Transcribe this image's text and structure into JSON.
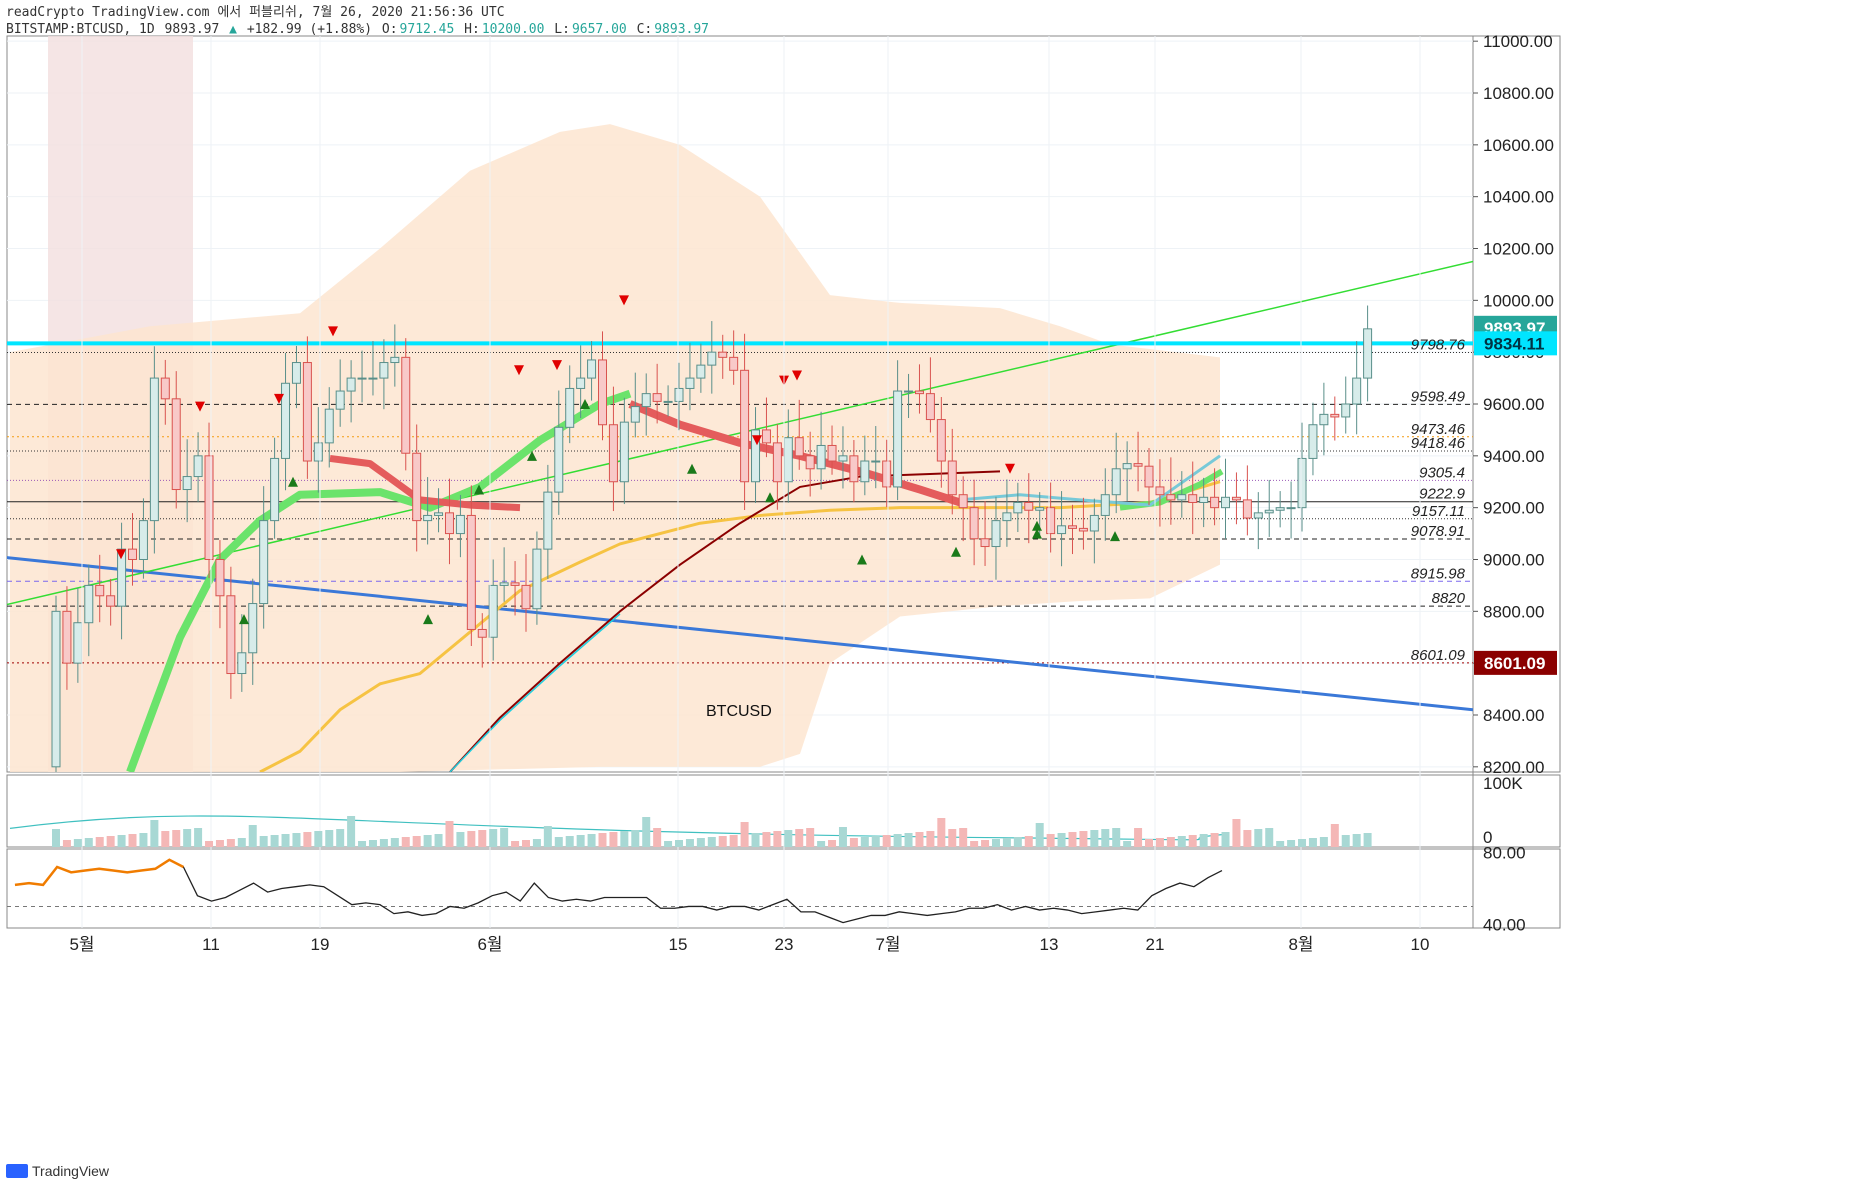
{
  "header": {
    "line1": "readCrypto TradingView.com 에서 퍼블리쉬, 7월 26, 2020 21:56:36 UTC",
    "symbol": "BITSTAMP:BTCUSD, 1D",
    "last": "9893.97",
    "change": "+182.99 (+1.88%)",
    "open_label": "O:",
    "open": "9712.45",
    "high_label": "H:",
    "high": "10200.00",
    "low_label": "L:",
    "low": "9657.00",
    "close_label": "C:",
    "close": "9893.97"
  },
  "footer": {
    "brand": "TradingView"
  },
  "colors": {
    "up": "#26a69a",
    "down": "#ef5350",
    "cyan_line": "#00e5ff",
    "green_line": "#33dd33",
    "blue_line": "#3a78d8",
    "orange_ma": "#f6c343",
    "price_tag_dark": "#8b0000"
  },
  "chart_data": [
    {
      "type": "line",
      "title": "BTCUSD",
      "subtitle": "BITSTAMP:BTCUSD, 1D",
      "x_ticks": [
        "5월",
        "11",
        "19",
        "6월",
        "15",
        "23",
        "7월",
        "13",
        "21",
        "8월",
        "10"
      ],
      "y_ticks": [
        "8200.00",
        "8400.00",
        "8600.00",
        "8800.00",
        "9000.00",
        "9200.00",
        "9400.00",
        "9600.00",
        "9800.00",
        "10000.00",
        "10200.00",
        "10400.00",
        "10600.00",
        "10800.00",
        "11000.00"
      ],
      "ylim": [
        8180,
        11020
      ],
      "candles_close": [
        8800,
        8600,
        8756,
        8900,
        8860,
        8820,
        9040,
        9000,
        9150,
        9700,
        9620,
        9270,
        9320,
        9400,
        9000,
        8860,
        8560,
        8640,
        8830,
        9150,
        9390,
        9680,
        9760,
        9380,
        9450,
        9580,
        9650,
        9700,
        9700,
        9700,
        9760,
        9780,
        9410,
        9150,
        9170,
        9180,
        9100,
        9170,
        8730,
        8700,
        8900,
        8910,
        8900,
        8810,
        9040,
        9260,
        9510,
        9660,
        9700,
        9770,
        9520,
        9300,
        9530,
        9590,
        9640,
        9610,
        9610,
        9660,
        9700,
        9750,
        9800,
        9780,
        9730,
        9300,
        9500,
        9450,
        9300,
        9470,
        9400,
        9350,
        9440,
        9380,
        9400,
        9300,
        9380,
        9380,
        9280,
        9650,
        9650,
        9640,
        9540,
        9380,
        9250,
        9200,
        9080,
        9050,
        9150,
        9180,
        9220,
        9190,
        9200,
        9100,
        9130,
        9120,
        9110,
        9170,
        9250,
        9350,
        9370,
        9360,
        9280,
        9250,
        9230,
        9250,
        9220,
        9240,
        9200,
        9240,
        9230,
        9160,
        9180,
        9190,
        9200,
        9200,
        9390,
        9520,
        9560,
        9550,
        9600,
        9700,
        9890
      ],
      "horizontal_levels": [
        {
          "value": 9798.76,
          "label": "9798.76",
          "style": "dotted"
        },
        {
          "value": 9598.49,
          "label": "9598.49",
          "style": "dashed"
        },
        {
          "value": 9473.46,
          "label": "9473.46",
          "style": "dotted-orange"
        },
        {
          "value": 9418.46,
          "label": "9418.46",
          "style": "dotted"
        },
        {
          "value": 9305.4,
          "label": "9305.4",
          "style": "dotted-purple"
        },
        {
          "value": 9222.9,
          "label": "9222.9",
          "style": "solid"
        },
        {
          "value": 9157.11,
          "label": "9157.11",
          "style": "dotted"
        },
        {
          "value": 9078.91,
          "label": "9078.91",
          "style": "dashed"
        },
        {
          "value": 8915.98,
          "label": "8915.98",
          "style": "dashed-purple"
        },
        {
          "value": 8820,
          "label": "8820",
          "style": "dashed"
        },
        {
          "value": 8601.09,
          "label": "8601.09",
          "style": "dotted-red"
        }
      ],
      "price_tags": [
        {
          "value": 9893.97,
          "label": "9893.97",
          "color": "#26a69a"
        },
        {
          "value": 9834.11,
          "label": "9834.11",
          "color": "#00e5ff"
        },
        {
          "value": 8601.09,
          "label": "8601.09",
          "color": "#8b0000"
        }
      ]
    },
    {
      "type": "bar",
      "title": "",
      "y_ticks": [
        "0",
        "100K"
      ]
    },
    {
      "type": "line",
      "title": "",
      "y_ticks": [
        "40.00",
        "80.00"
      ],
      "ylim": [
        38,
        82
      ],
      "values": [
        62,
        63,
        62,
        72,
        69,
        70,
        71,
        70,
        69,
        70,
        71,
        76,
        72,
        56,
        53,
        55,
        59,
        63,
        58,
        60,
        61,
        62,
        61,
        56,
        51,
        52,
        51,
        46,
        47,
        45,
        46,
        50,
        49,
        52,
        56,
        58,
        53,
        63,
        55,
        53,
        54,
        53,
        55,
        55,
        55,
        55,
        49,
        49,
        50,
        50,
        48,
        50,
        50,
        48,
        51,
        54,
        47,
        47,
        44,
        41,
        43,
        45,
        45,
        47,
        46,
        45,
        46,
        47,
        49,
        49,
        51,
        48,
        50,
        48,
        49,
        48,
        46,
        47,
        48,
        49,
        48,
        56,
        60,
        63,
        61,
        66,
        70
      ]
    }
  ]
}
